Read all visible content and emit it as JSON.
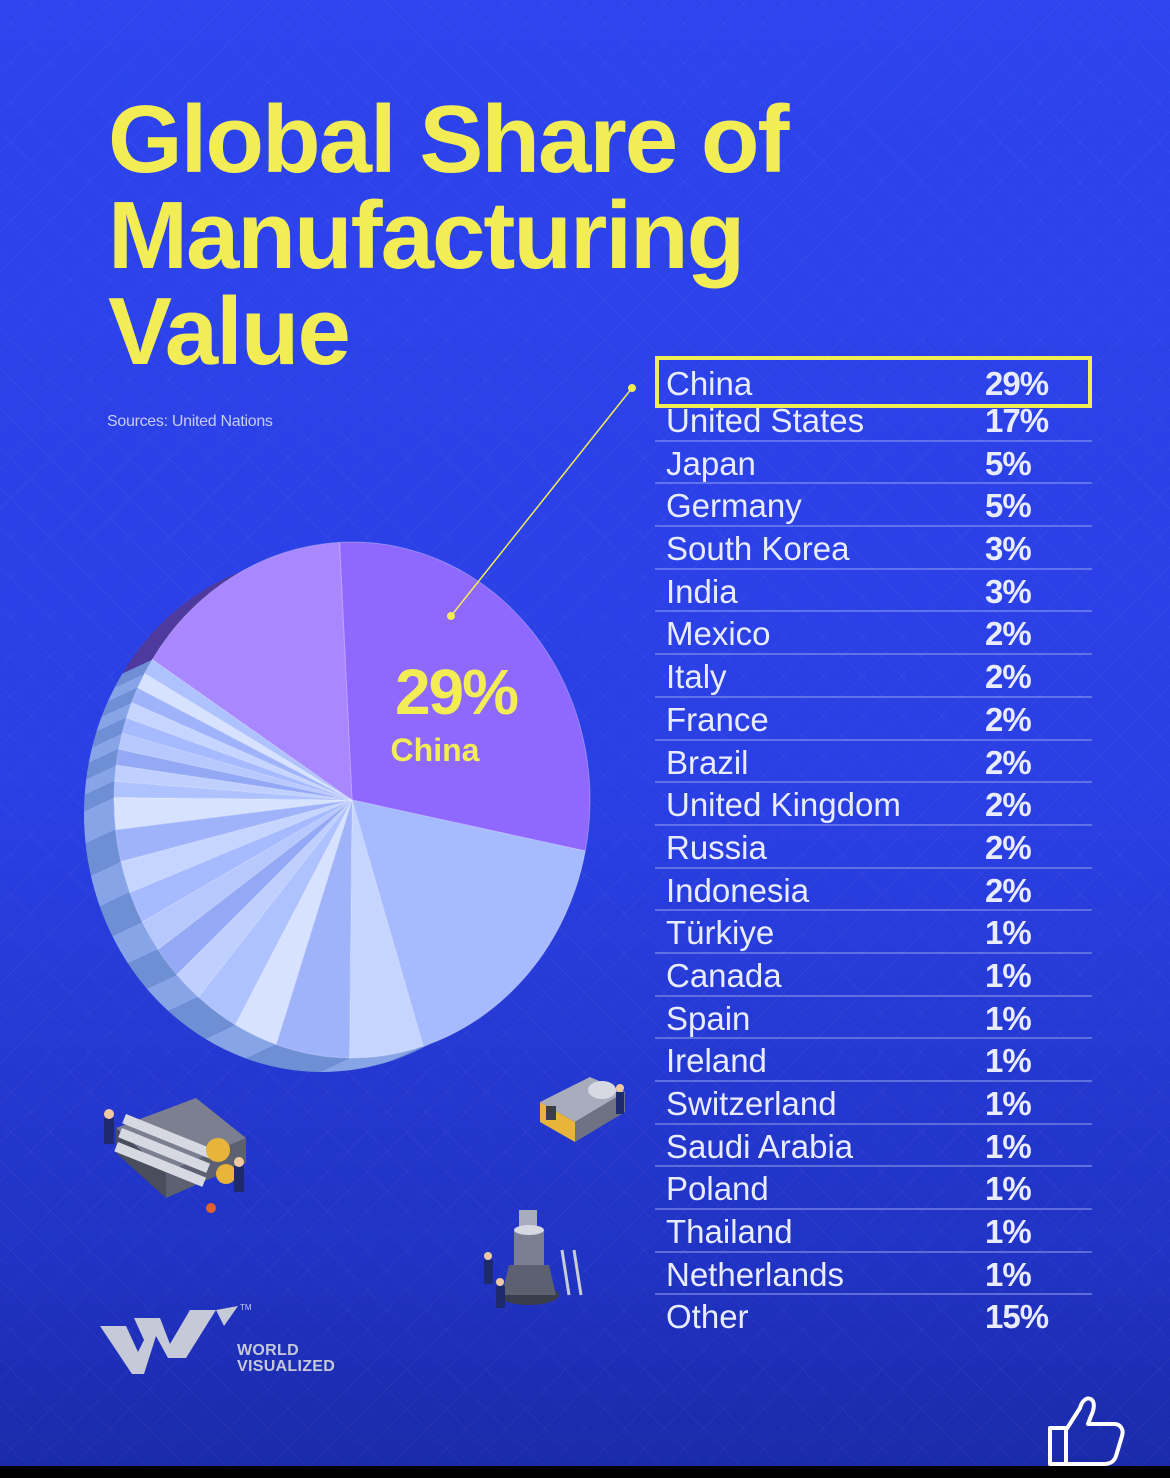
{
  "title_lines": [
    "Global Share of",
    "Manufacturing",
    "Value"
  ],
  "sources": "Sources: United Nations",
  "callout": {
    "value": "29%",
    "label": "China"
  },
  "brand": {
    "line1": "WORLD",
    "line2": "VISUALIZED",
    "tm": "TM"
  },
  "colors": {
    "background": "#2a40e6",
    "title": "#f2ec55",
    "highlight_slice": "#8f68ff",
    "highlight_border": "#f2ec55"
  },
  "chart_data": {
    "type": "pie",
    "highlight": "China",
    "categories": [
      "China",
      "United States",
      "Japan",
      "Germany",
      "South Korea",
      "India",
      "Mexico",
      "Italy",
      "France",
      "Brazil",
      "United Kingdom",
      "Russia",
      "Indonesia",
      "Türkiye",
      "Canada",
      "Spain",
      "Ireland",
      "Switzerland",
      "Saudi Arabia",
      "Poland",
      "Thailand",
      "Netherlands",
      "Other"
    ],
    "values": [
      29,
      17,
      5,
      5,
      3,
      3,
      2,
      2,
      2,
      2,
      2,
      2,
      2,
      1,
      1,
      1,
      1,
      1,
      1,
      1,
      1,
      1,
      15
    ],
    "labels": [
      "29%",
      "17%",
      "5%",
      "5%",
      "3%",
      "3%",
      "2%",
      "2%",
      "2%",
      "2%",
      "2%",
      "2%",
      "2%",
      "1%",
      "1%",
      "1%",
      "1%",
      "1%",
      "1%",
      "1%",
      "1%",
      "1%",
      "15%"
    ]
  },
  "icons": [
    "factory-roller-machine-icon",
    "workers-machine-icon",
    "turbine-assembly-icon",
    "thumbs-up-icon",
    "world-visualized-logo-icon"
  ]
}
